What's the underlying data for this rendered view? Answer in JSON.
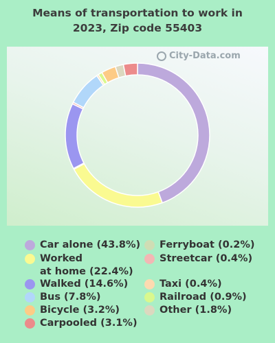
{
  "title_line1": "Means of transportation to work in",
  "title_line2": "2023, Zip code 55403",
  "watermark": "City-Data.com",
  "watermark_icon": "magnifier-icon",
  "chart_data": {
    "type": "pie",
    "donut": true,
    "title": "Means of transportation to work in 2023, Zip code 55403",
    "slices": [
      {
        "label": "Car alone",
        "value": 43.8,
        "color": "#bda9dc",
        "legend": "Car alone (43.8%)"
      },
      {
        "label": "Worked at home",
        "value": 22.4,
        "color": "#fafa91",
        "legend_line1": "Worked",
        "legend_line2": "at home (22.4%)"
      },
      {
        "label": "Ferryboat",
        "value": 0.2,
        "color": "#cfddb4",
        "legend": "Ferryboat (0.2%)"
      },
      {
        "label": "Walked",
        "value": 14.6,
        "color": "#9b96f0",
        "legend": "Walked (14.6%)"
      },
      {
        "label": "Streetcar",
        "value": 0.4,
        "color": "#f3b7b4",
        "legend": "Streetcar (0.4%)"
      },
      {
        "label": "Bus",
        "value": 7.8,
        "color": "#b1d7fa",
        "legend": "Bus (7.8%)"
      },
      {
        "label": "Taxi",
        "value": 0.4,
        "color": "#fddab0",
        "legend": "Taxi (0.4%)"
      },
      {
        "label": "Railroad",
        "value": 0.9,
        "color": "#d9f88d",
        "legend": "Railroad (0.9%)"
      },
      {
        "label": "Bicycle",
        "value": 3.2,
        "color": "#fdcb86",
        "legend": "Bicycle (3.2%)"
      },
      {
        "label": "Other",
        "value": 1.8,
        "color": "#dcd8bf",
        "legend": "Other (1.8%)"
      },
      {
        "label": "Carpooled",
        "value": 3.1,
        "color": "#ec8b8b",
        "legend": "Carpooled (3.1%)"
      }
    ]
  }
}
